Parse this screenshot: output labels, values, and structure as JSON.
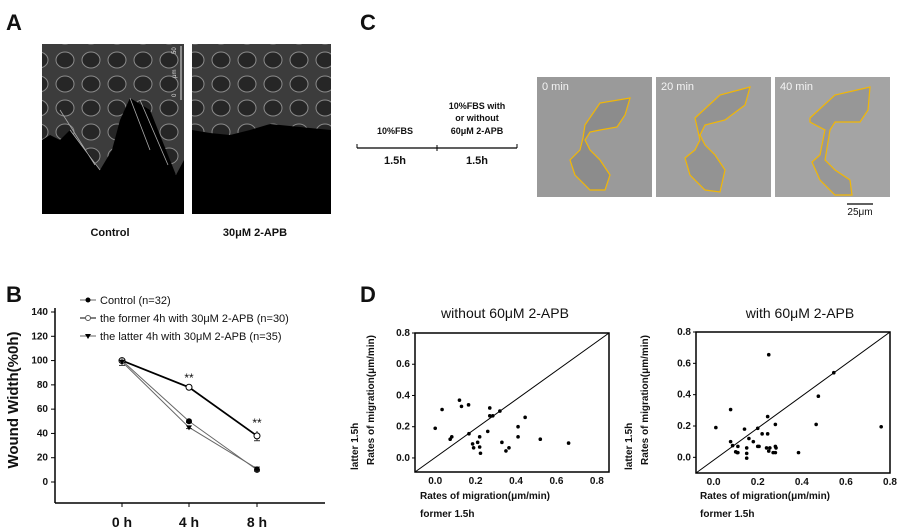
{
  "panels": {
    "a": "A",
    "b": "B",
    "c": "C",
    "d": "D"
  },
  "panel_a": {
    "labels": [
      "Control",
      "30μM 2-APB"
    ],
    "scale_bar": {
      "top": "50",
      "unit": "μm",
      "bottom": "0"
    }
  },
  "panel_c": {
    "phase1": {
      "label": "10%FBS",
      "duration": "1.5h"
    },
    "phase2": {
      "label_lines": [
        "10%FBS with",
        "or without",
        "60μM 2-APB"
      ],
      "duration": "1.5h"
    },
    "frames": [
      "0 min",
      "20 min",
      "40 min"
    ],
    "scale_bar": "25μm",
    "outline_color": "#f2b705"
  },
  "chart_data": [
    {
      "type": "line",
      "panel": "B",
      "ylabel": "Wound Width(%0h)",
      "xlabel": "",
      "categories": [
        "0 h",
        "4 h",
        "8 h"
      ],
      "ylim": [
        -15,
        140
      ],
      "yticks": [
        "0",
        "20",
        "40",
        "60",
        "80",
        "100",
        "120",
        "140"
      ],
      "ytick_values": [
        0,
        20,
        40,
        60,
        80,
        100,
        120,
        140
      ],
      "legend_position": "top-left",
      "series": [
        {
          "name": "Control (n=32)",
          "marker": "filled-circle",
          "values": [
            100,
            50,
            10
          ],
          "errors": [
            1,
            1,
            1
          ],
          "color": "#666666"
        },
        {
          "name": "the former 4h with 30μM 2-APB (n=30)",
          "marker": "open-circle",
          "values": [
            100,
            78,
            38
          ],
          "errors": [
            1,
            1,
            4
          ],
          "color": "#000000"
        },
        {
          "name": "the latter  4h with 30μM 2-APB (n=35)",
          "marker": "filled-triangle-down",
          "values": [
            99,
            45,
            11
          ],
          "errors": [
            3,
            1,
            2
          ],
          "color": "#666666"
        }
      ],
      "annotations": [
        {
          "x": "4 h",
          "text": "**"
        },
        {
          "x": "8 h",
          "text": "**"
        }
      ]
    },
    {
      "type": "scatter",
      "panel": "D",
      "title": "without 60μM  2-APB",
      "xlabel": [
        "Rates of migration(μm/min)",
        "former 1.5h"
      ],
      "ylabel": [
        "Rates of migration(μm/min)",
        "latter 1.5h"
      ],
      "xlim": [
        -0.1,
        0.86
      ],
      "ylim": [
        -0.09,
        0.8
      ],
      "xticks": [
        "0.0",
        "0.2",
        "0.4",
        "0.6",
        "0.8"
      ],
      "yticks": [
        "0.0",
        "0.2",
        "0.4",
        "0.6",
        "0.8"
      ],
      "reference_line": "y=x",
      "points": [
        [
          0.0,
          0.19
        ],
        [
          0.034,
          0.31
        ],
        [
          0.074,
          0.12
        ],
        [
          0.082,
          0.135
        ],
        [
          0.12,
          0.37
        ],
        [
          0.13,
          0.33
        ],
        [
          0.165,
          0.34
        ],
        [
          0.167,
          0.155
        ],
        [
          0.185,
          0.09
        ],
        [
          0.19,
          0.065
        ],
        [
          0.21,
          0.1
        ],
        [
          0.22,
          0.135
        ],
        [
          0.22,
          0.07
        ],
        [
          0.224,
          0.03
        ],
        [
          0.26,
          0.17
        ],
        [
          0.27,
          0.32
        ],
        [
          0.27,
          0.27
        ],
        [
          0.285,
          0.27
        ],
        [
          0.32,
          0.3
        ],
        [
          0.33,
          0.1
        ],
        [
          0.35,
          0.045
        ],
        [
          0.365,
          0.065
        ],
        [
          0.41,
          0.135
        ],
        [
          0.41,
          0.2
        ],
        [
          0.445,
          0.26
        ],
        [
          0.52,
          0.12
        ],
        [
          0.66,
          0.095
        ]
      ]
    },
    {
      "type": "scatter",
      "panel": "D",
      "title": "with 60μM 2-APB",
      "xlabel": [
        "Rates of migration(μm/min)",
        "former 1.5h"
      ],
      "ylabel": [
        "Rates of migration(μm/min)",
        "latter 1.5h"
      ],
      "xlim": [
        -0.08,
        0.8
      ],
      "ylim": [
        -0.1,
        0.8
      ],
      "xticks": [
        "0.0",
        "0.2",
        "0.4",
        "0.6",
        "0.8"
      ],
      "yticks": [
        "0.0",
        "0.2",
        "0.4",
        "0.6",
        "0.8"
      ],
      "reference_line": "y=x",
      "points": [
        [
          0.01,
          0.19
        ],
        [
          0.077,
          0.305
        ],
        [
          0.077,
          0.1
        ],
        [
          0.086,
          0.075
        ],
        [
          0.11,
          0.07
        ],
        [
          0.1,
          0.035
        ],
        [
          0.107,
          0.03
        ],
        [
          0.11,
          0.03
        ],
        [
          0.14,
          0.18
        ],
        [
          0.15,
          0.06
        ],
        [
          0.15,
          0.025
        ],
        [
          0.15,
          -0.005
        ],
        [
          0.16,
          0.12
        ],
        [
          0.18,
          0.1
        ],
        [
          0.2,
          0.07
        ],
        [
          0.206,
          0.07
        ],
        [
          0.2,
          0.185
        ],
        [
          0.22,
          0.15
        ],
        [
          0.24,
          0.06
        ],
        [
          0.245,
          0.15
        ],
        [
          0.245,
          0.26
        ],
        [
          0.25,
          0.04
        ],
        [
          0.25,
          0.655
        ],
        [
          0.255,
          0.06
        ],
        [
          0.27,
          0.03
        ],
        [
          0.28,
          0.03
        ],
        [
          0.28,
          0.21
        ],
        [
          0.28,
          0.07
        ],
        [
          0.283,
          0.06
        ],
        [
          0.385,
          0.03
        ],
        [
          0.465,
          0.21
        ],
        [
          0.475,
          0.39
        ],
        [
          0.545,
          0.54
        ],
        [
          0.76,
          0.195
        ]
      ]
    }
  ]
}
